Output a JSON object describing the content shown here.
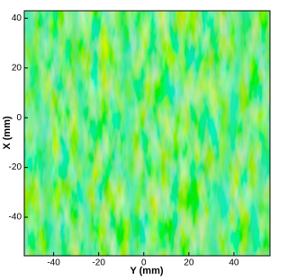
{
  "chart_data": {
    "type": "heatmap",
    "xlabel": "Y (mm)",
    "ylabel": "X (mm)",
    "xlim": [
      -53,
      56
    ],
    "ylim": [
      -55.5,
      43
    ],
    "xticks": [
      -40,
      -20,
      0,
      20,
      40
    ],
    "yticks": [
      -40,
      -20,
      0,
      20,
      40
    ]
  }
}
